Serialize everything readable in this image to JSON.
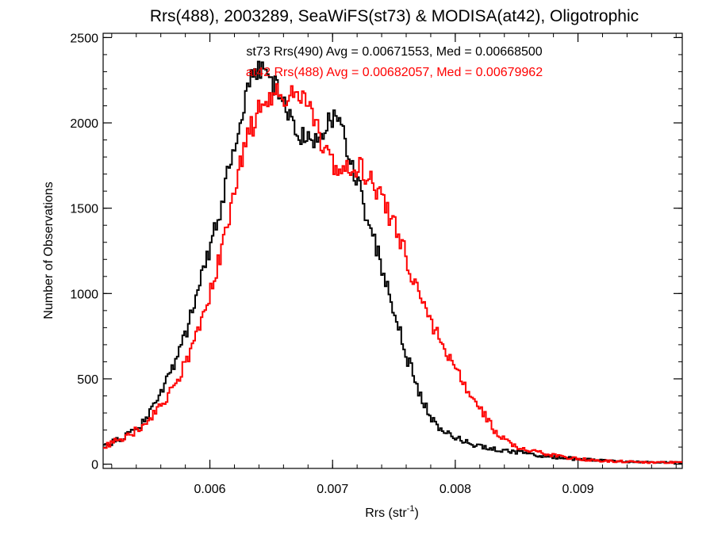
{
  "chart_data": {
    "type": "line",
    "title": "Rrs(488), 2003289, SeaWiFS(st73) & MODISA(at42), Oligotrophic",
    "xlabel_main": "Rrs (str",
    "xlabel_sup": "-1",
    "xlabel_close": ")",
    "ylabel": "Number of Observations",
    "xlim": [
      0.00513,
      0.00985
    ],
    "ylim": [
      -25,
      2525
    ],
    "xticks": [
      0.006,
      0.007,
      0.008,
      0.009
    ],
    "xtick_labels": [
      "0.006",
      "0.007",
      "0.008",
      "0.009"
    ],
    "yticks": [
      0,
      500,
      1000,
      1500,
      2000,
      2500
    ],
    "ytick_labels": [
      "0",
      "500",
      "1000",
      "1500",
      "2000",
      "2500"
    ],
    "grid": false,
    "series": [
      {
        "name": "st73",
        "color": "#000000",
        "annotation": "st73 Rrs(490) Avg = 0.00671553, Med = 0.00668500",
        "x": [
          0.00513,
          0.0052,
          0.0053,
          0.0054,
          0.0055,
          0.0056,
          0.0057,
          0.0058,
          0.0059,
          0.006,
          0.00605,
          0.0061,
          0.00615,
          0.0062,
          0.00625,
          0.0063,
          0.00635,
          0.0064,
          0.00645,
          0.0065,
          0.00655,
          0.0066,
          0.00665,
          0.0067,
          0.00675,
          0.0068,
          0.00685,
          0.0069,
          0.00695,
          0.007,
          0.00705,
          0.0071,
          0.00715,
          0.0072,
          0.00725,
          0.0073,
          0.00735,
          0.0074,
          0.00745,
          0.0075,
          0.00755,
          0.0076,
          0.00765,
          0.0077,
          0.0078,
          0.0079,
          0.008,
          0.0081,
          0.0082,
          0.0084,
          0.0086,
          0.0088,
          0.009,
          0.0092,
          0.0094,
          0.0096,
          0.00985
        ],
        "y": [
          100,
          130,
          160,
          210,
          290,
          420,
          590,
          780,
          1020,
          1280,
          1420,
          1560,
          1740,
          1920,
          2050,
          2200,
          2260,
          2330,
          2290,
          2250,
          2170,
          2110,
          2040,
          1970,
          1930,
          1920,
          1900,
          1930,
          1980,
          2020,
          1970,
          1880,
          1780,
          1640,
          1510,
          1390,
          1270,
          1130,
          1010,
          880,
          760,
          620,
          530,
          420,
          270,
          190,
          160,
          120,
          110,
          80,
          60,
          40,
          30,
          20,
          15,
          10,
          10
        ]
      },
      {
        "name": "at42",
        "color": "#ff0000",
        "annotation": "at42 Rrs(488) Avg = 0.00682057, Med = 0.00679962",
        "x": [
          0.00513,
          0.0052,
          0.0053,
          0.0054,
          0.0055,
          0.0056,
          0.0057,
          0.0058,
          0.0059,
          0.006,
          0.00605,
          0.0061,
          0.00615,
          0.0062,
          0.00625,
          0.0063,
          0.00635,
          0.0064,
          0.00645,
          0.0065,
          0.00655,
          0.0066,
          0.00665,
          0.0067,
          0.00675,
          0.0068,
          0.00685,
          0.0069,
          0.00695,
          0.007,
          0.00705,
          0.0071,
          0.00715,
          0.0072,
          0.00725,
          0.0073,
          0.00735,
          0.0074,
          0.00745,
          0.0075,
          0.00755,
          0.0076,
          0.00765,
          0.0077,
          0.0078,
          0.0079,
          0.008,
          0.0081,
          0.0082,
          0.0083,
          0.0084,
          0.0085,
          0.0086,
          0.0088,
          0.009,
          0.0092,
          0.0094,
          0.0096,
          0.00985
        ],
        "y": [
          100,
          130,
          160,
          200,
          260,
          340,
          450,
          600,
          790,
          1020,
          1150,
          1290,
          1440,
          1610,
          1790,
          1920,
          2000,
          2080,
          2130,
          2180,
          2170,
          2150,
          2160,
          2200,
          2170,
          2100,
          2000,
          1900,
          1820,
          1760,
          1740,
          1730,
          1720,
          1740,
          1710,
          1660,
          1610,
          1540,
          1470,
          1390,
          1310,
          1200,
          1090,
          1000,
          830,
          690,
          560,
          430,
          320,
          210,
          140,
          100,
          80,
          50,
          30,
          20,
          15,
          10,
          10
        ]
      }
    ]
  }
}
